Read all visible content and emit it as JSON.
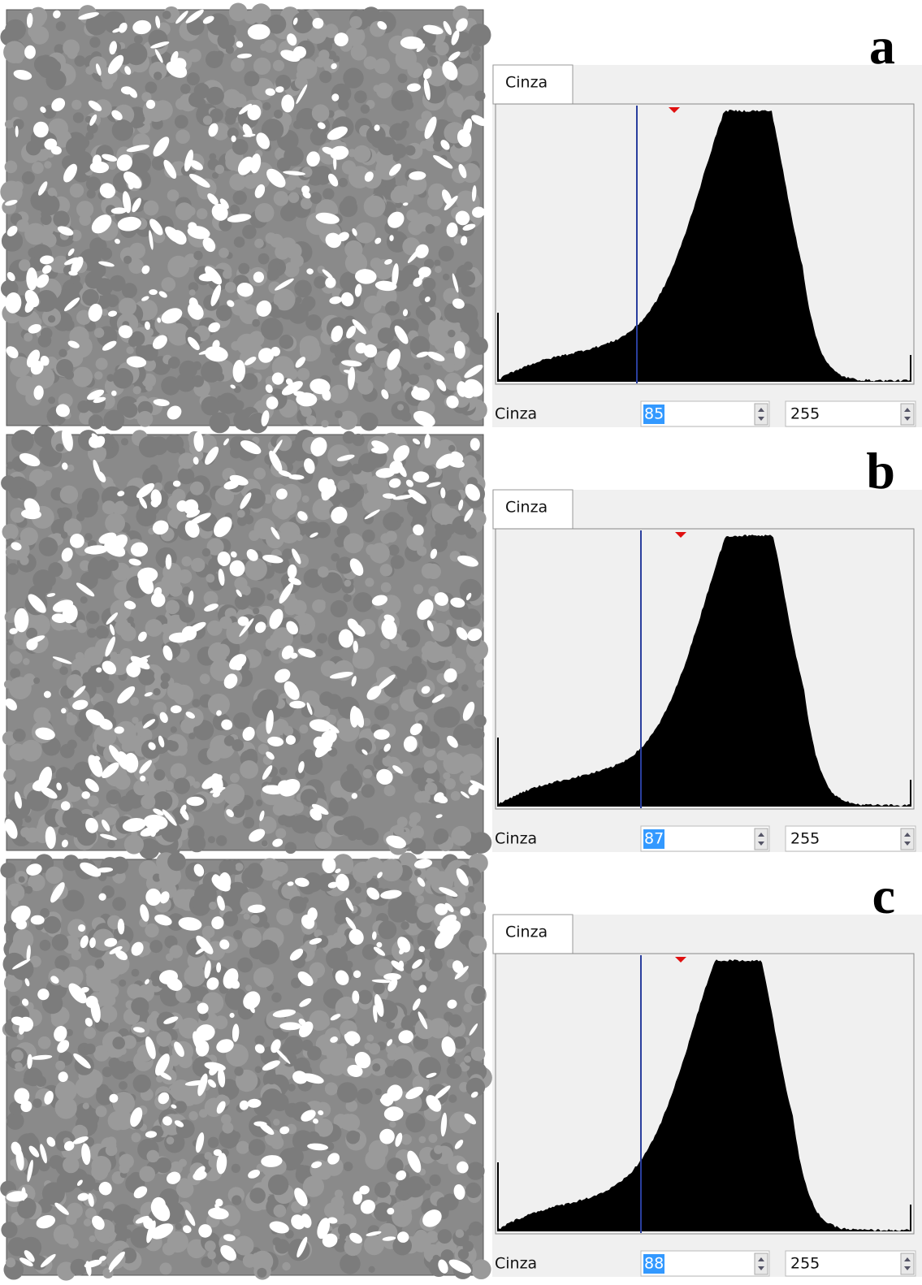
{
  "panels": [
    {
      "label": "a",
      "tab": "Cinza",
      "field_label": "Cinza",
      "min": "85",
      "max": "255"
    },
    {
      "label": "b",
      "tab": "Cinza",
      "field_label": "Cinza",
      "min": "87",
      "max": "255"
    },
    {
      "label": "c",
      "tab": "Cinza",
      "field_label": "Cinza",
      "min": "88",
      "max": "255"
    }
  ]
}
